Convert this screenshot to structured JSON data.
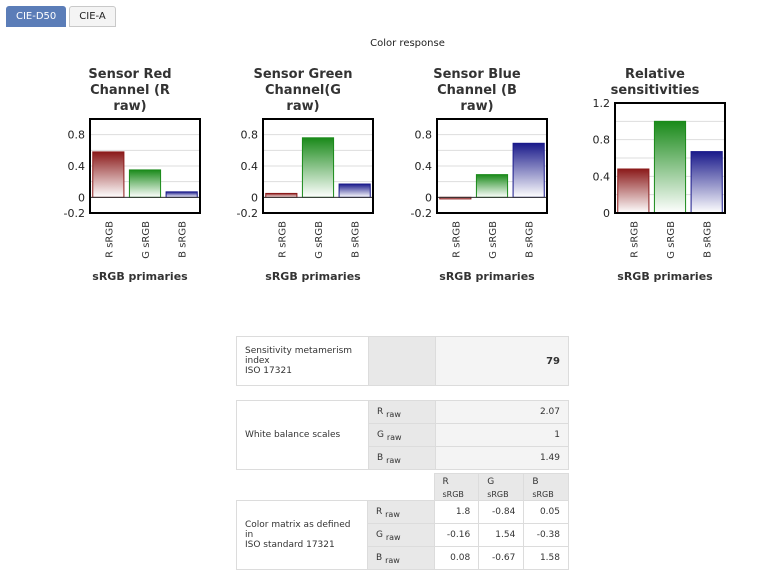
{
  "tabs": [
    "CIE-D50",
    "CIE-A"
  ],
  "response_title": "Color response",
  "chart_data": [
    {
      "type": "bar",
      "title": "Sensor Red Channel (R raw)",
      "title_lines": [
        "Sensor Red",
        "Channel (R",
        "raw)"
      ],
      "categories": [
        "R sRGB",
        "G sRGB",
        "B sRGB"
      ],
      "values": [
        0.58,
        0.35,
        0.07
      ],
      "ylim": [
        -0.2,
        1.0
      ],
      "yticks": [
        "0.8",
        "0.4",
        "0",
        "-0.2"
      ],
      "xlabel": "sRGB primaries",
      "ylabel": "",
      "grid": true
    },
    {
      "type": "bar",
      "title": "Sensor Green Channel(G raw)",
      "title_lines": [
        "Sensor Green",
        "Channel(G",
        "raw)"
      ],
      "categories": [
        "R sRGB",
        "G sRGB",
        "B sRGB"
      ],
      "values": [
        0.05,
        0.76,
        0.17
      ],
      "ylim": [
        -0.2,
        1.0
      ],
      "yticks": [
        "0.8",
        "0.4",
        "0",
        "-0.2"
      ],
      "xlabel": "sRGB primaries",
      "ylabel": "",
      "grid": true
    },
    {
      "type": "bar",
      "title": "Sensor Blue Channel (B raw)",
      "title_lines": [
        "Sensor Blue",
        "Channel (B",
        "raw)"
      ],
      "categories": [
        "R sRGB",
        "G sRGB",
        "B sRGB"
      ],
      "values": [
        -0.02,
        0.29,
        0.69
      ],
      "ylim": [
        -0.2,
        1.0
      ],
      "yticks": [
        "0.8",
        "0.4",
        "0",
        "-0.2"
      ],
      "xlabel": "sRGB primaries",
      "ylabel": "",
      "grid": true
    },
    {
      "type": "bar",
      "title": "Relative sensitivities",
      "title_lines": [
        "Relative",
        "sensitivities"
      ],
      "categories": [
        "R sRGB",
        "G sRGB",
        "B sRGB"
      ],
      "values": [
        0.48,
        1.0,
        0.67
      ],
      "ylim": [
        0,
        1.2
      ],
      "yticks": [
        "1.2",
        "0.8",
        "0.4",
        "0"
      ],
      "xlabel": "sRGB primaries",
      "ylabel": "",
      "grid": true
    }
  ],
  "bar_colors": [
    "#8b1a1a",
    "#1a8a1a",
    "#1a1a8b"
  ],
  "smi": {
    "label_lines": [
      "Sensitivity metamerism",
      "index",
      "ISO 17321"
    ],
    "value": "79"
  },
  "wb": {
    "label": "White balance scales",
    "rows": [
      {
        "ch": "R",
        "sub": "raw",
        "val": "2.07"
      },
      {
        "ch": "G",
        "sub": "raw",
        "val": "1"
      },
      {
        "ch": "B",
        "sub": "raw",
        "val": "1.49"
      }
    ]
  },
  "matrix": {
    "label_lines": [
      "Color matrix as defined in",
      "ISO standard 17321"
    ],
    "cols": [
      {
        "ch": "R",
        "sub": "sRGB"
      },
      {
        "ch": "G",
        "sub": "sRGB"
      },
      {
        "ch": "B",
        "sub": "sRGB"
      }
    ],
    "rows": [
      {
        "ch": "R",
        "sub": "raw",
        "vals": [
          "1.8",
          "-0.84",
          "0.05"
        ]
      },
      {
        "ch": "G",
        "sub": "raw",
        "vals": [
          "-0.16",
          "1.54",
          "-0.38"
        ]
      },
      {
        "ch": "B",
        "sub": "raw",
        "vals": [
          "0.08",
          "-0.67",
          "1.58"
        ]
      }
    ]
  }
}
